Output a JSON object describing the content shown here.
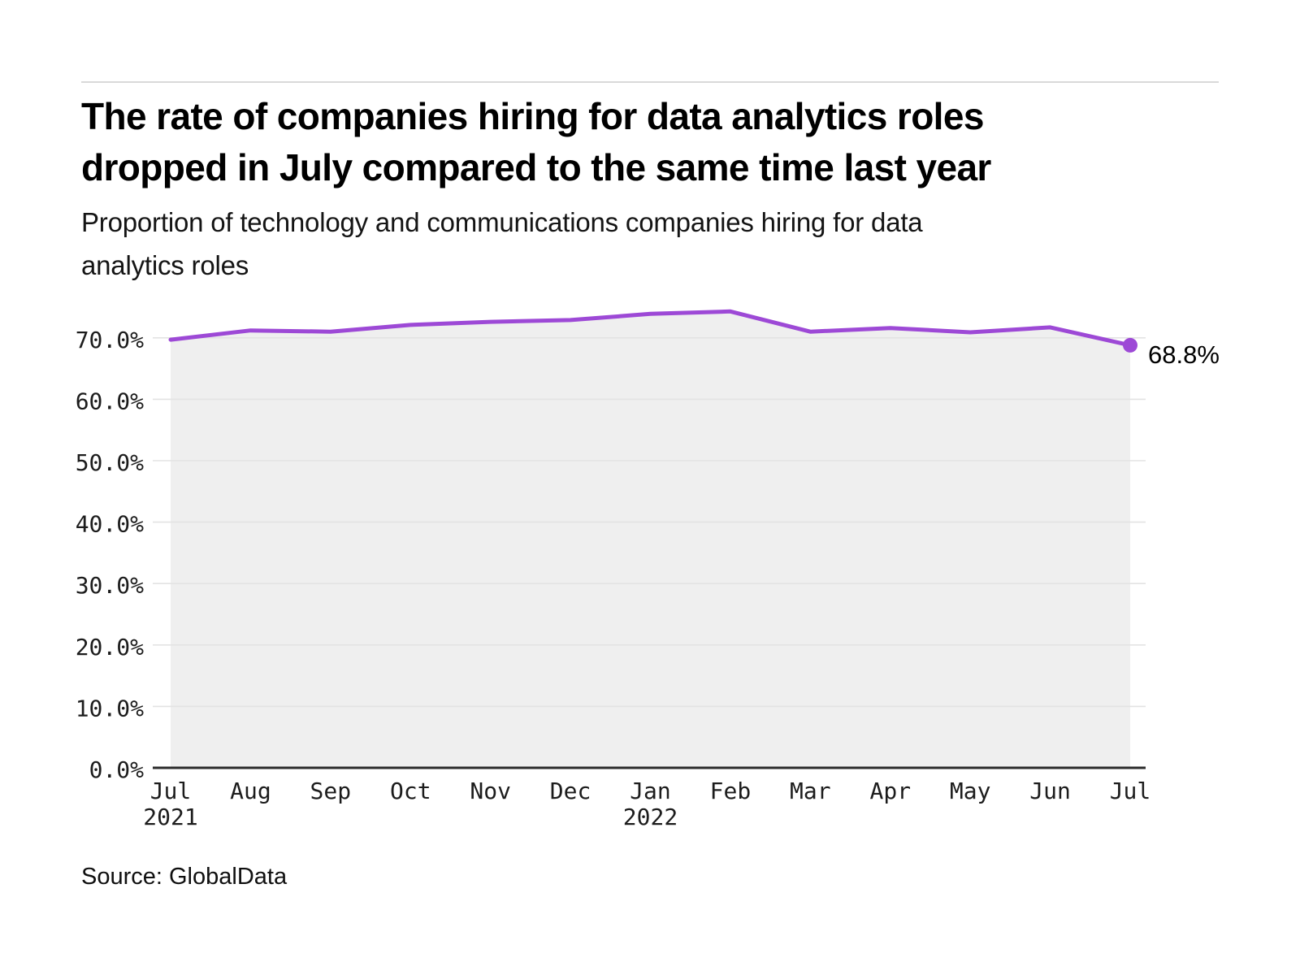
{
  "header": {
    "title_line1": "The rate of companies hiring for data analytics roles",
    "title_line2": "dropped in July compared to the same time last year",
    "subtitle_line1": "Proportion of technology and communications companies hiring for data",
    "subtitle_line2": "analytics roles"
  },
  "source": {
    "text": "Source: GlobalData"
  },
  "colors": {
    "line": "#9d49d6",
    "dot": "#9d49d6",
    "area_fill": "#efefef",
    "gridline": "#e3e3e3",
    "axis": "#2b2b2b",
    "divider": "#d9d9d9"
  },
  "chart_data": {
    "type": "line",
    "title": "The rate of companies hiring for data analytics roles dropped in July compared to the same time last year",
    "subtitle": "Proportion of technology and communications companies hiring for data analytics roles",
    "x": [
      "Jul 2021",
      "Aug 2021",
      "Sep 2021",
      "Oct 2021",
      "Nov 2021",
      "Dec 2021",
      "Jan 2022",
      "Feb 2022",
      "Mar 2022",
      "Apr 2022",
      "May 2022",
      "Jun 2022",
      "Jul 2022"
    ],
    "x_ticks": [
      {
        "label": "Jul",
        "year": "2021"
      },
      {
        "label": "Aug"
      },
      {
        "label": "Sep"
      },
      {
        "label": "Oct"
      },
      {
        "label": "Nov"
      },
      {
        "label": "Dec"
      },
      {
        "label": "Jan",
        "year": "2022"
      },
      {
        "label": "Feb"
      },
      {
        "label": "Mar"
      },
      {
        "label": "Apr"
      },
      {
        "label": "May"
      },
      {
        "label": "Jun"
      },
      {
        "label": "Jul"
      }
    ],
    "series": [
      {
        "name": "Proportion of technology and communications companies hiring for data analytics roles",
        "values": [
          69.7,
          71.2,
          71.0,
          72.1,
          72.6,
          72.9,
          73.9,
          74.3,
          71.0,
          71.6,
          70.9,
          71.7,
          68.8
        ]
      }
    ],
    "end_label": "68.8%",
    "ylim": [
      0,
      75.5
    ],
    "y_ticks": [
      {
        "value": 0,
        "label": "0.0%"
      },
      {
        "value": 10,
        "label": "10.0%"
      },
      {
        "value": 20,
        "label": "20.0%"
      },
      {
        "value": 30,
        "label": "30.0%"
      },
      {
        "value": 40,
        "label": "40.0%"
      },
      {
        "value": 50,
        "label": "50.0%"
      },
      {
        "value": 60,
        "label": "60.0%"
      },
      {
        "value": 70,
        "label": "70.0%"
      }
    ],
    "grid": "horizontal",
    "legend": "none",
    "xlabel": "",
    "ylabel": ""
  }
}
